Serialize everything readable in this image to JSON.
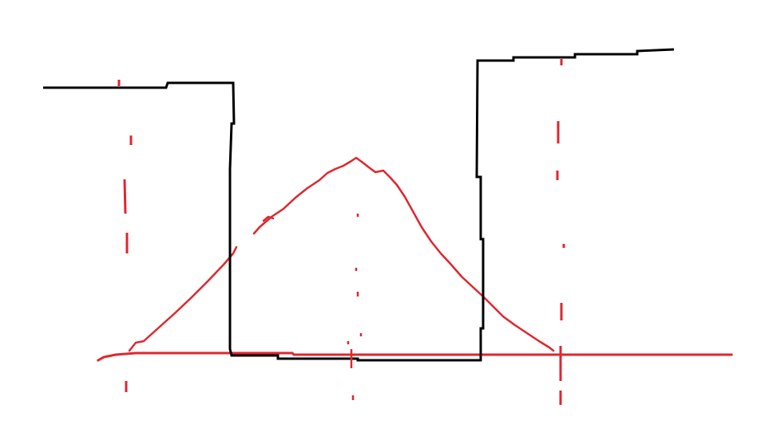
{
  "diagram": {
    "kind": "hand-drawn sketch",
    "colors": {
      "background": "#ffffff",
      "outline": "#000000",
      "curve": "#e0262e"
    },
    "elements": [
      "baseline",
      "bell-curve",
      "well-outline",
      "dashed-marker-left",
      "dashed-marker-center",
      "dashed-marker-right"
    ]
  }
}
